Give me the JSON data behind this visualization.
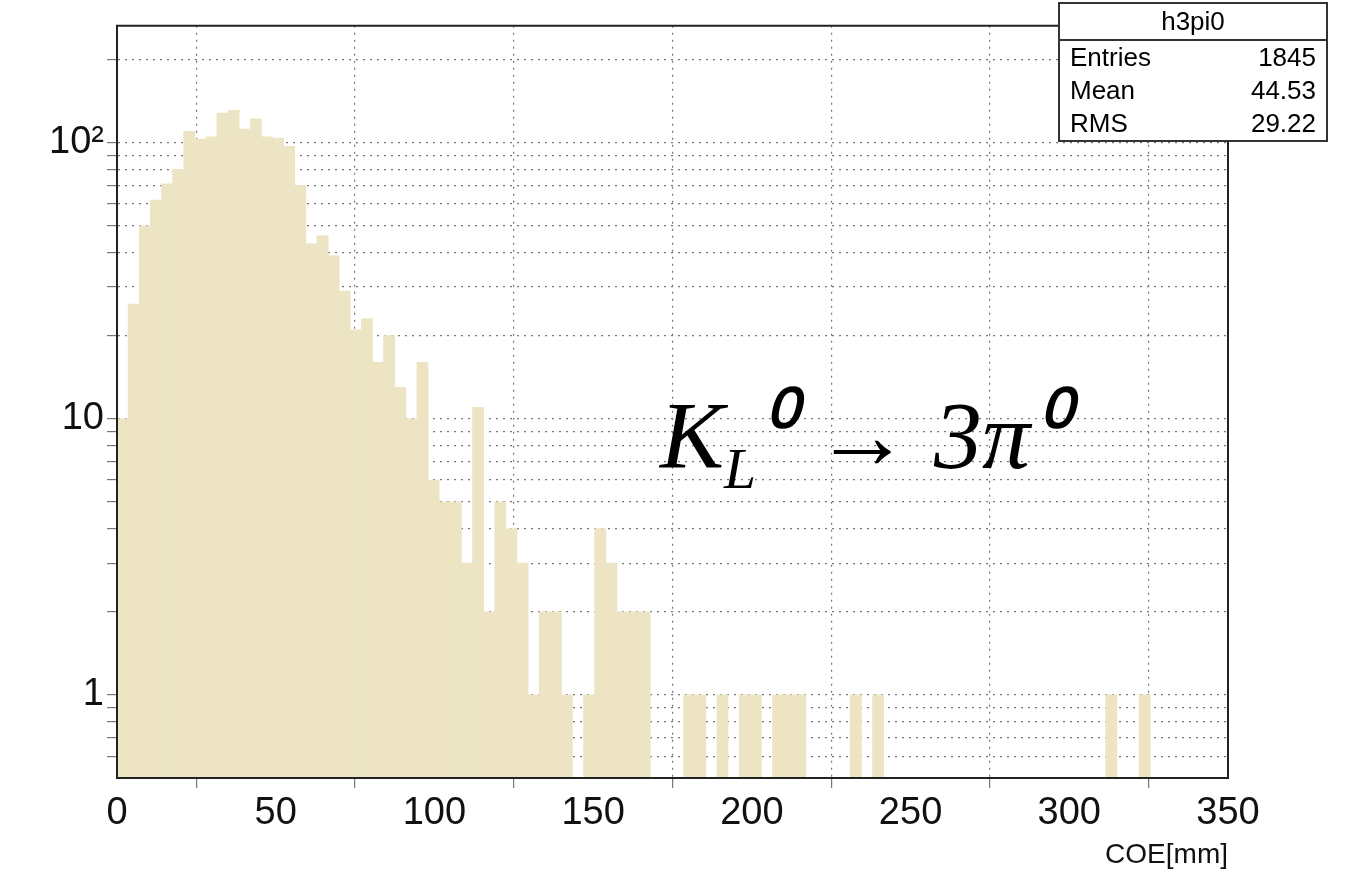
{
  "chart_data": {
    "type": "histogram",
    "xlabel": "COE[mm]",
    "annotations": [
      "h3pi0",
      "Entries 1845",
      "Mean 44.53",
      "RMS 29.22",
      "K$_{L}$⁰ → 3π⁰"
    ],
    "bins": [
      0,
      3.5,
      7,
      10.5,
      14,
      17.5,
      21,
      24.5,
      28,
      31.5,
      35,
      38.5,
      42,
      45.5,
      49,
      52.5,
      56,
      59.5,
      63,
      66.5,
      70,
      73.5,
      77,
      80.5,
      84,
      87.5,
      91,
      94.5,
      98,
      101.5,
      105,
      108.5,
      112,
      115.5,
      119,
      122.5,
      126,
      129.5,
      133,
      136.5,
      140,
      143.5,
      147,
      150.5,
      154,
      157.5,
      161,
      164.5,
      168,
      171.5,
      175,
      178.5,
      182,
      185.5,
      189,
      192.5,
      196,
      199.5,
      203,
      206.5,
      210,
      213.5,
      217,
      220.5,
      224,
      227.5,
      231,
      234.5,
      238,
      241.5,
      245,
      248.5,
      252,
      255.5,
      259,
      262.5,
      266,
      269.5,
      273,
      276.5,
      280,
      283.5,
      287,
      290.5,
      294,
      297.5,
      301,
      304.5,
      308,
      311.5,
      315,
      318.5,
      322,
      325.5,
      329,
      332.5,
      336,
      339.5,
      343,
      346.5,
      350
    ],
    "values": [
      10,
      26,
      50,
      62,
      71,
      80,
      110,
      103,
      105,
      128,
      131,
      112,
      122,
      105,
      104,
      97,
      70,
      43,
      46,
      39,
      29,
      21,
      23,
      16,
      20,
      13,
      10,
      16,
      6,
      5,
      5,
      3,
      11,
      2,
      5,
      4,
      3,
      1,
      2,
      2,
      1,
      null,
      1,
      4,
      3,
      2,
      2,
      2,
      null,
      null,
      null,
      1,
      1,
      null,
      1,
      null,
      1,
      1,
      null,
      1,
      1,
      1,
      null,
      null,
      null,
      null,
      1,
      null,
      1,
      null,
      null,
      null,
      null,
      null,
      null,
      null,
      null,
      null,
      null,
      null,
      null,
      null,
      null,
      null,
      null,
      null,
      null,
      null,
      null,
      1,
      null,
      null,
      1,
      null,
      null,
      null,
      null,
      null,
      null,
      null
    ],
    "color": "#ece4c3",
    "log": true,
    "grid": true,
    "legend": false,
    "xlim": [
      0,
      350
    ],
    "xticks": [
      0,
      50,
      100,
      150,
      200,
      250,
      300,
      350
    ],
    "ylim": [
      0.5,
      265
    ],
    "yticks": [
      {
        "value": 0.6,
        "label": null
      },
      {
        "value": 0.7,
        "label": null
      },
      {
        "value": 0.8,
        "label": null
      },
      {
        "value": 0.9,
        "label": null
      },
      1,
      {
        "value": 2,
        "label": null
      },
      {
        "value": 3,
        "label": null
      },
      {
        "value": 4,
        "label": null
      },
      {
        "value": 5,
        "label": null
      },
      {
        "value": 6,
        "label": null
      },
      {
        "value": 7,
        "label": null
      },
      {
        "value": 8,
        "label": null
      },
      {
        "value": 9,
        "label": null
      },
      10,
      {
        "value": 20,
        "label": null
      },
      {
        "value": 30,
        "label": null
      },
      {
        "value": 40,
        "label": null
      },
      {
        "value": 50,
        "label": null
      },
      {
        "value": 60,
        "label": null
      },
      {
        "value": 70,
        "label": null
      },
      {
        "value": 80,
        "label": null
      },
      {
        "value": 90,
        "label": null
      },
      {
        "value": 100,
        "label": "10²"
      },
      {
        "value": 200,
        "label": null
      }
    ]
  }
}
